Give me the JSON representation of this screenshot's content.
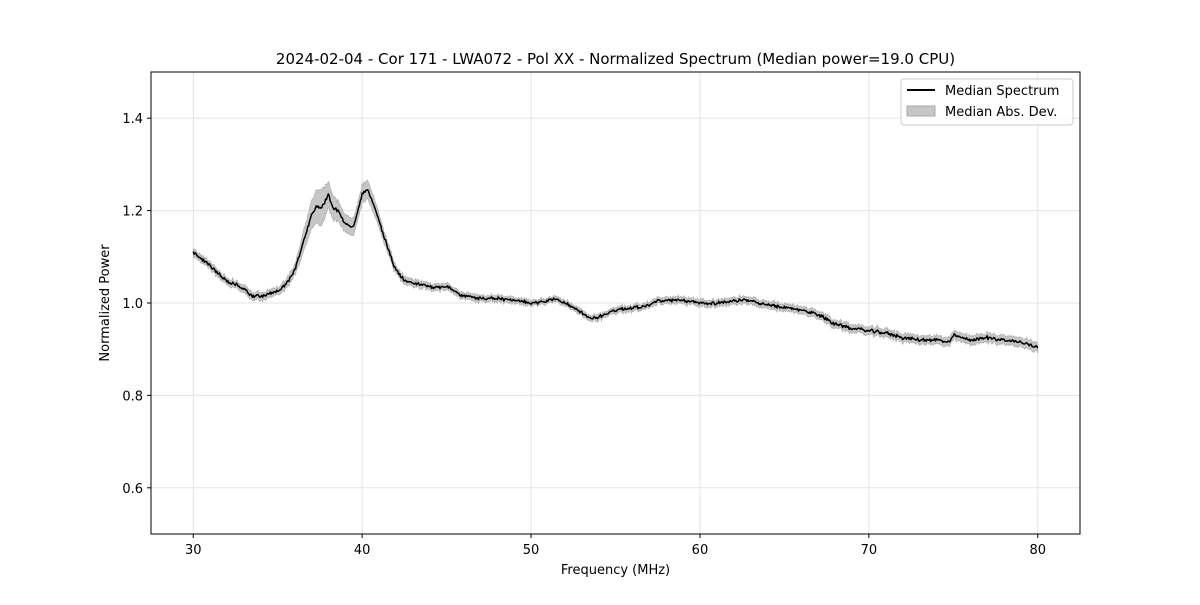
{
  "chart_data": {
    "type": "line",
    "title": "2024-02-04 - Cor 171 - LWA072 - Pol XX - Normalized Spectrum (Median power=19.0 CPU)",
    "xlabel": "Frequency (MHz)",
    "ylabel": "Normalized Power",
    "xlim": [
      27.5,
      82.5
    ],
    "ylim": [
      0.5,
      1.5
    ],
    "xticks": [
      30,
      40,
      50,
      60,
      70,
      80
    ],
    "xtick_labels": [
      "30",
      "40",
      "50",
      "60",
      "70",
      "80"
    ],
    "yticks": [
      0.6,
      0.8,
      1.0,
      1.2,
      1.4
    ],
    "ytick_labels": [
      "0.6",
      "0.8",
      "1.0",
      "1.2",
      "1.4"
    ],
    "grid": true,
    "legend_position": "top-right",
    "series": [
      {
        "name": "Median Spectrum",
        "color": "#000000",
        "x": [
          30,
          30.5,
          31,
          31.5,
          32,
          32.5,
          33,
          33.5,
          34,
          34.5,
          35,
          35.5,
          36,
          36.5,
          37,
          37.3,
          37.6,
          38,
          38.3,
          38.6,
          39,
          39.5,
          40,
          40.3,
          40.6,
          41,
          41.5,
          42,
          42.5,
          43,
          44,
          45,
          46,
          47,
          48,
          49,
          50,
          51,
          51.5,
          52,
          53,
          53.5,
          54,
          55,
          56,
          57,
          57.5,
          58,
          59,
          60,
          61,
          62,
          63,
          64,
          65,
          66,
          67,
          68,
          69,
          70,
          71,
          72,
          73,
          74,
          74.8,
          75,
          76,
          77,
          78,
          79,
          80
        ],
        "y": [
          1.11,
          1.095,
          1.08,
          1.065,
          1.045,
          1.04,
          1.03,
          1.015,
          1.015,
          1.02,
          1.025,
          1.04,
          1.07,
          1.13,
          1.19,
          1.21,
          1.205,
          1.235,
          1.205,
          1.2,
          1.17,
          1.165,
          1.235,
          1.245,
          1.22,
          1.18,
          1.12,
          1.07,
          1.05,
          1.045,
          1.035,
          1.035,
          1.015,
          1.01,
          1.01,
          1.005,
          1.0,
          1.005,
          1.01,
          1.0,
          0.98,
          0.965,
          0.97,
          0.985,
          0.99,
          0.995,
          1.005,
          1.005,
          1.005,
          1.0,
          1.0,
          1.005,
          1.005,
          0.995,
          0.99,
          0.985,
          0.975,
          0.955,
          0.945,
          0.94,
          0.935,
          0.925,
          0.92,
          0.92,
          0.915,
          0.93,
          0.92,
          0.925,
          0.92,
          0.915,
          0.905
        ]
      }
    ],
    "band": {
      "name": "Median Abs. Dev.",
      "color": "#c6c6c6",
      "edge_color": "#a8a8a8",
      "halfwidth_x": [
        30,
        35,
        36,
        37,
        37.6,
        38,
        39,
        40,
        40.5,
        41,
        42,
        50,
        80
      ],
      "halfwidth": [
        0.008,
        0.008,
        0.012,
        0.03,
        0.04,
        0.028,
        0.018,
        0.02,
        0.02,
        0.015,
        0.008,
        0.006,
        0.01
      ]
    }
  }
}
